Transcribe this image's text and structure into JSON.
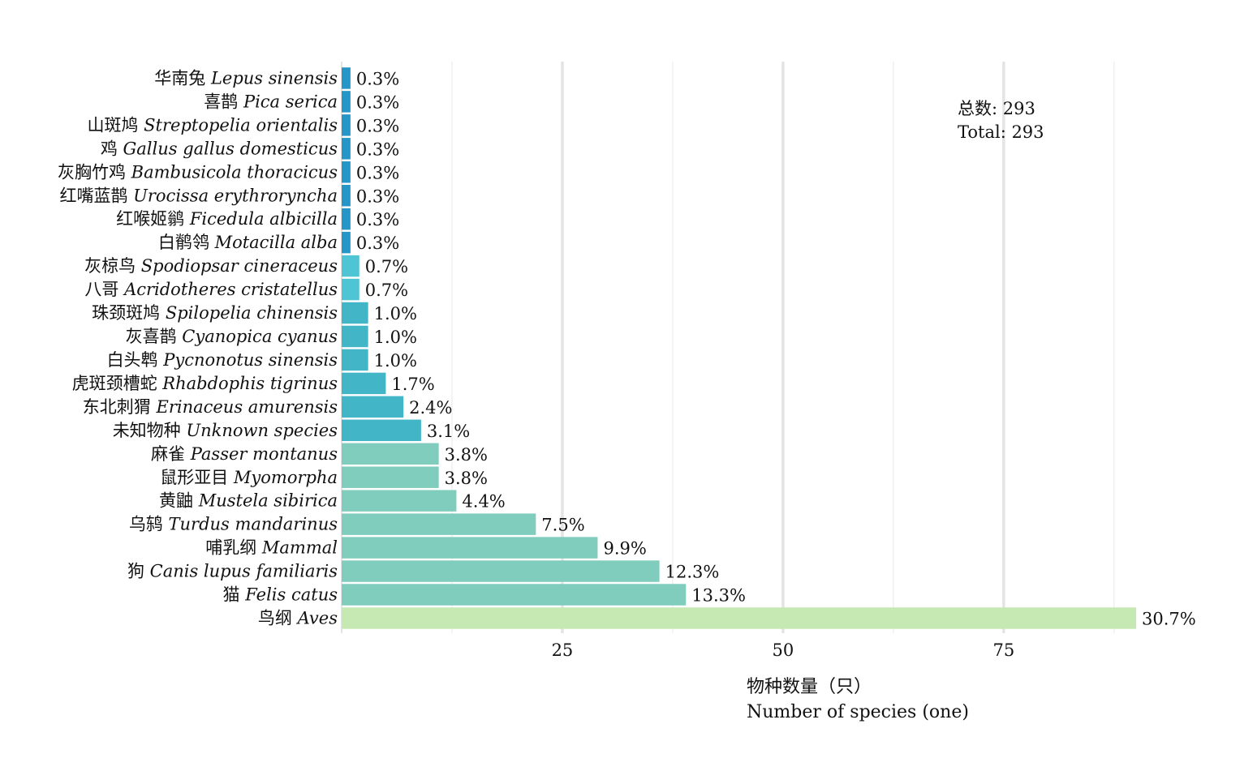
{
  "chart_data": {
    "type": "bar",
    "orientation": "horizontal",
    "categories": [
      {
        "cn": "华南兔",
        "sci": "Lepus sinensis"
      },
      {
        "cn": "喜鹊",
        "sci": "Pica serica"
      },
      {
        "cn": "山斑鸠",
        "sci": "Streptopelia orientalis"
      },
      {
        "cn": "鸡",
        "sci": "Gallus gallus domesticus"
      },
      {
        "cn": "灰胸竹鸡",
        "sci": "Bambusicola thoracicus"
      },
      {
        "cn": "红嘴蓝鹊",
        "sci": "Urocissa erythroryncha"
      },
      {
        "cn": "红喉姬鹟",
        "sci": "Ficedula albicilla"
      },
      {
        "cn": "白鹡鸰",
        "sci": "Motacilla alba"
      },
      {
        "cn": "灰椋鸟",
        "sci": "Spodiopsar cineraceus"
      },
      {
        "cn": "八哥",
        "sci": "Acridotheres cristatellus"
      },
      {
        "cn": "珠颈斑鸠",
        "sci": "Spilopelia chinensis"
      },
      {
        "cn": "灰喜鹊",
        "sci": "Cyanopica cyanus"
      },
      {
        "cn": "白头鹎",
        "sci": "Pycnonotus sinensis"
      },
      {
        "cn": "虎斑颈槽蛇",
        "sci": "Rhabdophis tigrinus"
      },
      {
        "cn": "东北刺猬",
        "sci": "Erinaceus amurensis"
      },
      {
        "cn": "未知物种",
        "sci": "Unknown species"
      },
      {
        "cn": "麻雀",
        "sci": "Passer montanus"
      },
      {
        "cn": "鼠形亚目",
        "sci": "Myomorpha"
      },
      {
        "cn": "黄鼬",
        "sci": "Mustela sibirica"
      },
      {
        "cn": "乌鸫",
        "sci": "Turdus mandarinus"
      },
      {
        "cn": "哺乳纲",
        "sci": "Mammal"
      },
      {
        "cn": "狗",
        "sci": "Canis lupus familiaris"
      },
      {
        "cn": "猫",
        "sci": "Felis catus"
      },
      {
        "cn": "鸟纲",
        "sci": "Aves"
      }
    ],
    "values": [
      1,
      1,
      1,
      1,
      1,
      1,
      1,
      1,
      2,
      2,
      3,
      3,
      3,
      5,
      7,
      9,
      11,
      11,
      13,
      22,
      29,
      36,
      39,
      90
    ],
    "value_labels": [
      "0.3%",
      "0.3%",
      "0.3%",
      "0.3%",
      "0.3%",
      "0.3%",
      "0.3%",
      "0.3%",
      "0.7%",
      "0.7%",
      "1.0%",
      "1.0%",
      "1.0%",
      "1.7%",
      "2.4%",
      "3.1%",
      "3.8%",
      "3.8%",
      "4.4%",
      "7.5%",
      "9.9%",
      "12.3%",
      "13.3%",
      "30.7%"
    ],
    "bar_colors": [
      "#2696c8",
      "#2696c8",
      "#2696c8",
      "#2696c8",
      "#2696c8",
      "#2696c8",
      "#2696c8",
      "#2696c8",
      "#4ec4d4",
      "#4ec4d4",
      "#42b6c6",
      "#42b6c6",
      "#42b6c6",
      "#42b6c6",
      "#42b6c6",
      "#42b6c6",
      "#80cdbd",
      "#80cdbd",
      "#80cdbd",
      "#80cdbd",
      "#80cdbd",
      "#80cdbd",
      "#80cdbd",
      "#c6e9b4"
    ],
    "xlim": [
      0,
      90
    ],
    "xticks": [
      25,
      50,
      75
    ],
    "xtick_labels": [
      "25",
      "50",
      "75"
    ],
    "xlabel_cn": "物种数量（只）",
    "xlabel_en": "Number of species (one)",
    "grid": true,
    "annotation": {
      "line1": "总数:  293",
      "line2": "Total: 293"
    }
  }
}
